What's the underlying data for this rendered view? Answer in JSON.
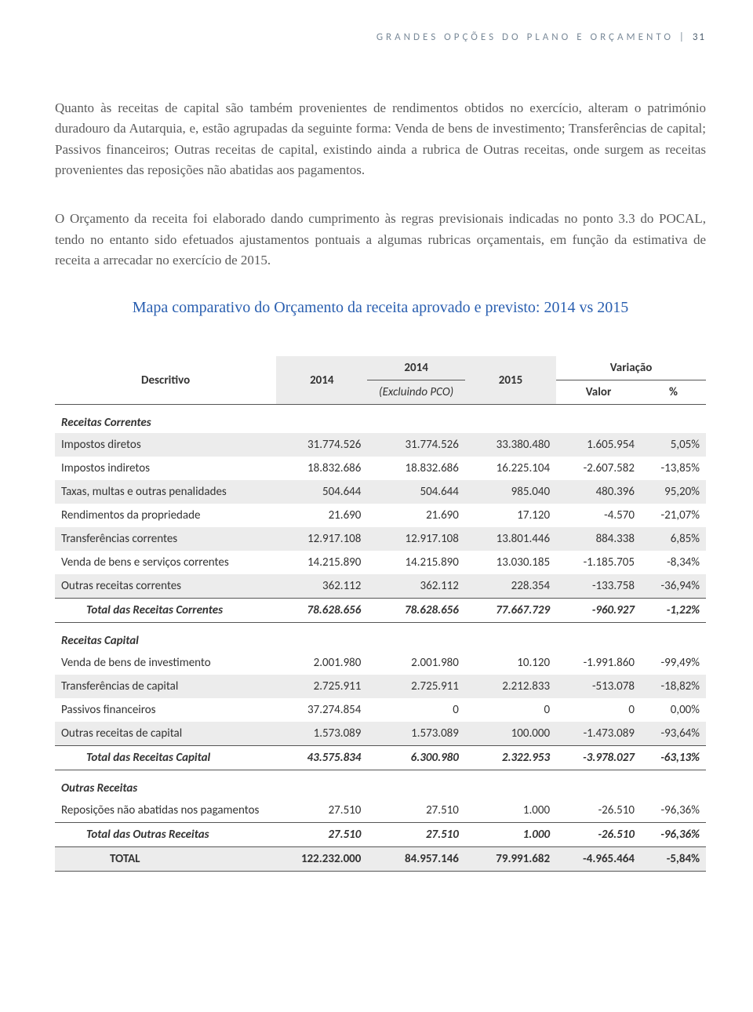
{
  "header": {
    "text": "GRANDES OPÇÕES DO PLANO E ORÇAMENTO",
    "sep": " | ",
    "pagenum": "31"
  },
  "para1": "Quanto às receitas de capital são também provenientes de rendimentos obtidos no exercício, alteram o património duradouro da Autarquia, e, estão agrupadas da seguinte forma: Venda de bens de investimento; Transferências de capital; Passivos financeiros; Outras receitas de capital, existindo ainda a rubrica de Outras receitas, onde surgem as receitas provenientes das reposições não abatidas aos pagamentos.",
  "para2": "O Orçamento da receita foi elaborado dando cumprimento às regras previsionais indicadas no ponto 3.3 do POCAL, tendo no entanto sido efetuados ajustamentos pontuais a algumas rubricas orçamentais, em função da estimativa de receita a arrecadar no exercício de 2015.",
  "subtitle": "Mapa comparativo do Orçamento da receita aprovado e previsto:  2014 vs 2015",
  "cols": {
    "c0": "Descritivo",
    "c1": "2014",
    "c2a": "2014",
    "c2b": "(Excluindo PCO)",
    "c3": "2015",
    "c4": "Variação",
    "c4a": "Valor",
    "c4b": "%"
  },
  "s1": {
    "head": "Receitas Correntes",
    "r": [
      {
        "l": "Impostos diretos",
        "a": "31.774.526",
        "b": "31.774.526",
        "c": "33.380.480",
        "d": "1.605.954",
        "e": "5,05%"
      },
      {
        "l": "Impostos indiretos",
        "a": "18.832.686",
        "b": "18.832.686",
        "c": "16.225.104",
        "d": "-2.607.582",
        "e": "-13,85%"
      },
      {
        "l": "Taxas, multas e outras penalidades",
        "a": "504.644",
        "b": "504.644",
        "c": "985.040",
        "d": "480.396",
        "e": "95,20%"
      },
      {
        "l": "Rendimentos da propriedade",
        "a": "21.690",
        "b": "21.690",
        "c": "17.120",
        "d": "-4.570",
        "e": "-21,07%"
      },
      {
        "l": "Transferências correntes",
        "a": "12.917.108",
        "b": "12.917.108",
        "c": "13.801.446",
        "d": "884.338",
        "e": "6,85%"
      },
      {
        "l": "Venda de bens e serviços correntes",
        "a": "14.215.890",
        "b": "14.215.890",
        "c": "13.030.185",
        "d": "-1.185.705",
        "e": "-8,34%"
      },
      {
        "l": "Outras receitas correntes",
        "a": "362.112",
        "b": "362.112",
        "c": "228.354",
        "d": "-133.758",
        "e": "-36,94%"
      }
    ],
    "tot": {
      "l": "Total das Receitas Correntes",
      "a": "78.628.656",
      "b": "78.628.656",
      "c": "77.667.729",
      "d": "-960.927",
      "e": "-1,22%"
    }
  },
  "s2": {
    "head": "Receitas Capital",
    "r": [
      {
        "l": "Venda de bens de investimento",
        "a": "2.001.980",
        "b": "2.001.980",
        "c": "10.120",
        "d": "-1.991.860",
        "e": "-99,49%"
      },
      {
        "l": "Transferências de capital",
        "a": "2.725.911",
        "b": "2.725.911",
        "c": "2.212.833",
        "d": "-513.078",
        "e": "-18,82%"
      },
      {
        "l": "Passivos financeiros",
        "a": "37.274.854",
        "b": "0",
        "c": "0",
        "d": "0",
        "e": "0,00%"
      },
      {
        "l": "Outras receitas de capital",
        "a": "1.573.089",
        "b": "1.573.089",
        "c": "100.000",
        "d": "-1.473.089",
        "e": "-93,64%"
      }
    ],
    "tot": {
      "l": "Total das Receitas Capital",
      "a": "43.575.834",
      "b": "6.300.980",
      "c": "2.322.953",
      "d": "-3.978.027",
      "e": "-63,13%"
    }
  },
  "s3": {
    "head": "Outras Receitas",
    "r": [
      {
        "l": "Reposições não abatidas nos pagamentos",
        "a": "27.510",
        "b": "27.510",
        "c": "1.000",
        "d": "-26.510",
        "e": "-96,36%"
      }
    ],
    "tot": {
      "l": "Total das Outras Receitas",
      "a": "27.510",
      "b": "27.510",
      "c": "1.000",
      "d": "-26.510",
      "e": "-96,36%"
    }
  },
  "grand": {
    "l": "TOTAL",
    "a": "122.232.000",
    "b": "84.957.146",
    "c": "79.991.682",
    "d": "-4.965.464",
    "e": "-5,84%"
  }
}
